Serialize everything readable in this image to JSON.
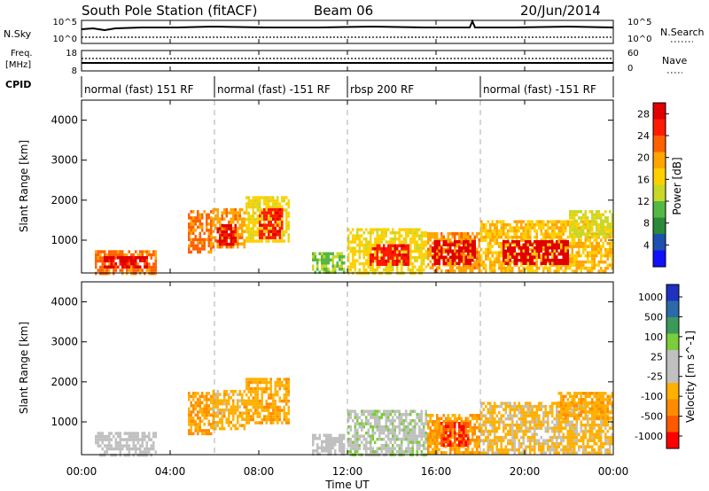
{
  "header": {
    "station": "South Pole Station (fitACF)",
    "beam": "Beam 06",
    "date": "20/Jun/2014"
  },
  "noise_panel": {
    "left_label": "N.Sky",
    "right_label": "N.Search",
    "left_ticks": [
      "10^5",
      "10^0"
    ],
    "right_ticks": [
      "10^5",
      "10^0"
    ]
  },
  "freq_panel": {
    "left_label_1": "Freq.",
    "left_label_2": "[MHz]",
    "right_label": "Nave",
    "left_ticks": [
      "18",
      "8"
    ],
    "right_ticks": [
      "60",
      "0"
    ]
  },
  "cpid": {
    "label": "CPID",
    "segments": [
      {
        "label": "normal (fast) 151 RF",
        "start": 0,
        "end": 6
      },
      {
        "label": "normal (fast) -151 RF",
        "start": 6,
        "end": 12
      },
      {
        "label": "rbsp 200 RF",
        "start": 12,
        "end": 18
      },
      {
        "label": "normal (fast) -151 RF",
        "start": 18,
        "end": 24
      }
    ]
  },
  "time_axis": {
    "label": "Time UT",
    "ticks": [
      "00:00",
      "04:00",
      "08:00",
      "12:00",
      "16:00",
      "20:00",
      "00:00"
    ]
  },
  "chart_data": [
    {
      "type": "heatmap",
      "ylabel": "Slant Range [km]",
      "x_range_hours": [
        0,
        24
      ],
      "ylim": [
        180,
        4500
      ],
      "yticks": [
        "1000",
        "2000",
        "3000",
        "4000"
      ],
      "colorbar": {
        "label": "Power [dB]",
        "ticks": [
          "4",
          "8",
          "12",
          "16",
          "20",
          "24",
          "28"
        ],
        "range": [
          0,
          30
        ],
        "colors": [
          "#1010ff",
          "#1f4faf",
          "#2a8a3a",
          "#55b845",
          "#c8d828",
          "#ffd000",
          "#ffa500",
          "#ff6000",
          "#ff1a00",
          "#e00000"
        ]
      },
      "patches": [
        {
          "t0": 0.6,
          "t1": 3.4,
          "r0": 200,
          "r1": 750,
          "v": 22
        },
        {
          "t0": 1.0,
          "t1": 3.0,
          "r0": 320,
          "r1": 600,
          "v": 28
        },
        {
          "t0": 4.8,
          "t1": 5.9,
          "r0": 700,
          "r1": 1750,
          "v": 22
        },
        {
          "t0": 5.9,
          "t1": 7.4,
          "r0": 800,
          "r1": 1800,
          "v": 20
        },
        {
          "t0": 6.1,
          "t1": 7.0,
          "r0": 900,
          "r1": 1400,
          "v": 28
        },
        {
          "t0": 7.4,
          "t1": 9.4,
          "r0": 1000,
          "r1": 2100,
          "v": 16
        },
        {
          "t0": 8.0,
          "t1": 9.1,
          "r0": 1100,
          "r1": 1800,
          "v": 26
        },
        {
          "t0": 10.4,
          "t1": 11.9,
          "r0": 200,
          "r1": 700,
          "v": 12
        },
        {
          "t0": 12.0,
          "t1": 15.6,
          "r0": 200,
          "r1": 1300,
          "v": 16
        },
        {
          "t0": 13.0,
          "t1": 14.8,
          "r0": 400,
          "r1": 900,
          "v": 26
        },
        {
          "t0": 15.6,
          "t1": 18.0,
          "r0": 200,
          "r1": 1200,
          "v": 20
        },
        {
          "t0": 15.8,
          "t1": 17.8,
          "r0": 450,
          "r1": 1000,
          "v": 29
        },
        {
          "t0": 18.0,
          "t1": 24.0,
          "r0": 200,
          "r1": 1500,
          "v": 18
        },
        {
          "t0": 19.0,
          "t1": 22.0,
          "r0": 450,
          "r1": 1000,
          "v": 29
        },
        {
          "t0": 22.0,
          "t1": 24.0,
          "r0": 1100,
          "r1": 1750,
          "v": 14
        }
      ]
    },
    {
      "type": "heatmap",
      "ylabel": "Slant Range [km]",
      "x_range_hours": [
        0,
        24
      ],
      "ylim": [
        180,
        4500
      ],
      "yticks": [
        "1000",
        "2000",
        "3000",
        "4000"
      ],
      "colorbar": {
        "label": "Velocity [m s^-1]",
        "ticks": [
          "1000",
          "500",
          "100",
          "25",
          "-25",
          "-100",
          "-500",
          "-1000"
        ],
        "range": [
          -1000,
          1000
        ],
        "colors": [
          "#ff0000",
          "#ff5a00",
          "#ff8c00",
          "#ffb000",
          "#c0c0c0",
          "#c0c0c0",
          "#7ccd3a",
          "#3a9a5a",
          "#2a6aa8",
          "#2030c0"
        ]
      },
      "patches": [
        {
          "t0": 0.6,
          "t1": 3.4,
          "r0": 200,
          "r1": 750,
          "v": 60
        },
        {
          "t0": 4.8,
          "t1": 5.9,
          "r0": 700,
          "r1": 1750,
          "v": -400
        },
        {
          "t0": 5.9,
          "t1": 7.4,
          "r0": 800,
          "r1": 1800,
          "v": -300
        },
        {
          "t0": 7.4,
          "t1": 9.4,
          "r0": 1000,
          "r1": 2100,
          "v": -350
        },
        {
          "t0": 10.4,
          "t1": 11.9,
          "r0": 200,
          "r1": 700,
          "v": 80
        },
        {
          "t0": 12.0,
          "t1": 15.6,
          "r0": 200,
          "r1": 1300,
          "v": 150
        },
        {
          "t0": 15.6,
          "t1": 18.0,
          "r0": 200,
          "r1": 1200,
          "v": -400
        },
        {
          "t0": 16.2,
          "t1": 17.5,
          "r0": 400,
          "r1": 1000,
          "v": -800
        },
        {
          "t0": 18.0,
          "t1": 24.0,
          "r0": 200,
          "r1": 1500,
          "v": -250
        },
        {
          "t0": 21.5,
          "t1": 24.0,
          "r0": 1100,
          "r1": 1750,
          "v": -350
        }
      ]
    }
  ]
}
